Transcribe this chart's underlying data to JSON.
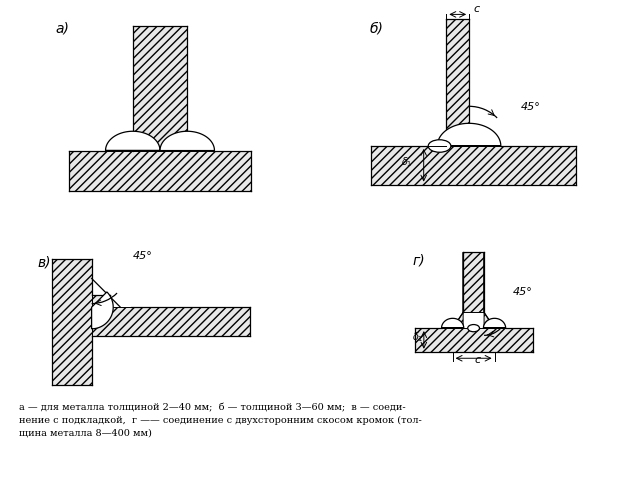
{
  "background_color": "#ffffff",
  "line_color": "#000000",
  "hatch_color": "#000000",
  "face_color": "#e8e8e8",
  "caption_line1": "а — для металла толщиной 2—40 мм;  б — толщиной 3—60 мм;  в — соеди-",
  "caption_line2": "нение с подкладкой,  г —— соединение с двухсторонним скосом кромок (тол-",
  "caption_line3": "щина металла 8—400 мм)",
  "label_a": "а)",
  "label_b": "б)",
  "label_v": "в)",
  "label_g": "г)"
}
